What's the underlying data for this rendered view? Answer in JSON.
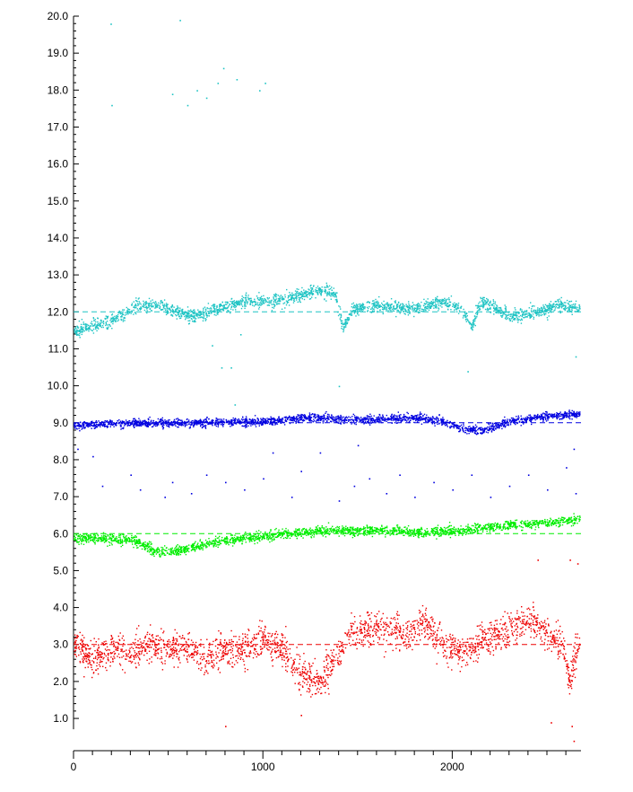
{
  "chart_data": {
    "type": "scatter",
    "title": "",
    "xlabel": "",
    "ylabel": "",
    "xlim": [
      0,
      2680
    ],
    "ylim": [
      0.2,
      20.0
    ],
    "y_ticks": [
      "1.0",
      "2.0",
      "3.0",
      "4.0",
      "5.0",
      "6.0",
      "7.0",
      "8.0",
      "9.0",
      "10.0",
      "11.0",
      "12.0",
      "13.0",
      "14.0",
      "15.0",
      "16.0",
      "17.0",
      "18.0",
      "19.0",
      "20.0"
    ],
    "x_ticks": [
      "0",
      "1000",
      "2000"
    ],
    "x_tick_values": [
      0,
      1000,
      2000
    ],
    "x_minor_step": 100,
    "y_minor_step": 0.2,
    "grid": false,
    "legend": "none",
    "series": [
      {
        "color": "#1fc4c4",
        "reference": 12.0,
        "trend": [
          [
            0,
            11.5
          ],
          [
            150,
            11.7
          ],
          [
            250,
            11.9
          ],
          [
            330,
            12.2
          ],
          [
            450,
            12.2
          ],
          [
            550,
            12.0
          ],
          [
            650,
            11.9
          ],
          [
            750,
            12.1
          ],
          [
            900,
            12.3
          ],
          [
            1050,
            12.3
          ],
          [
            1150,
            12.4
          ],
          [
            1280,
            12.6
          ],
          [
            1380,
            12.5
          ],
          [
            1420,
            11.6
          ],
          [
            1480,
            12.1
          ],
          [
            1600,
            12.2
          ],
          [
            1800,
            12.1
          ],
          [
            1950,
            12.3
          ],
          [
            2050,
            12.1
          ],
          [
            2100,
            11.6
          ],
          [
            2150,
            12.3
          ],
          [
            2300,
            11.9
          ],
          [
            2450,
            12.0
          ],
          [
            2550,
            12.2
          ],
          [
            2680,
            12.1
          ]
        ],
        "spread": 0.17,
        "outliers": [
          [
            195,
            19.8
          ],
          [
            200,
            17.6
          ],
          [
            560,
            19.9
          ],
          [
            520,
            17.9
          ],
          [
            600,
            17.6
          ],
          [
            650,
            18.0
          ],
          [
            700,
            17.8
          ],
          [
            760,
            18.2
          ],
          [
            790,
            18.6
          ],
          [
            860,
            18.3
          ],
          [
            980,
            18.0
          ],
          [
            1010,
            18.2
          ],
          [
            730,
            11.1
          ],
          [
            780,
            10.5
          ],
          [
            830,
            10.5
          ],
          [
            880,
            11.4
          ],
          [
            1400,
            10.0
          ],
          [
            2080,
            10.4
          ],
          [
            2650,
            10.8
          ],
          [
            850,
            9.5
          ]
        ]
      },
      {
        "color": "#0000e0",
        "reference": 9.0,
        "trend": [
          [
            0,
            8.95
          ],
          [
            300,
            9.0
          ],
          [
            500,
            9.0
          ],
          [
            1000,
            9.05
          ],
          [
            1200,
            9.15
          ],
          [
            1500,
            9.1
          ],
          [
            1800,
            9.15
          ],
          [
            1950,
            9.05
          ],
          [
            2050,
            8.85
          ],
          [
            2150,
            8.8
          ],
          [
            2300,
            9.05
          ],
          [
            2500,
            9.2
          ],
          [
            2680,
            9.25
          ]
        ],
        "spread": 0.11,
        "outliers": [
          [
            20,
            8.3
          ],
          [
            100,
            8.1
          ],
          [
            150,
            7.3
          ],
          [
            300,
            7.6
          ],
          [
            350,
            7.2
          ],
          [
            480,
            7.0
          ],
          [
            520,
            7.4
          ],
          [
            620,
            7.1
          ],
          [
            700,
            7.6
          ],
          [
            800,
            7.4
          ],
          [
            900,
            7.2
          ],
          [
            1000,
            7.5
          ],
          [
            1150,
            7.0
          ],
          [
            1200,
            7.7
          ],
          [
            1300,
            8.2
          ],
          [
            1400,
            6.9
          ],
          [
            1480,
            7.3
          ],
          [
            1560,
            7.5
          ],
          [
            1650,
            7.1
          ],
          [
            1720,
            7.6
          ],
          [
            1800,
            7.0
          ],
          [
            1900,
            7.4
          ],
          [
            2000,
            7.2
          ],
          [
            2100,
            7.6
          ],
          [
            2200,
            7.0
          ],
          [
            2300,
            7.3
          ],
          [
            2400,
            7.6
          ],
          [
            2500,
            7.2
          ],
          [
            2600,
            7.8
          ],
          [
            2640,
            8.3
          ],
          [
            2650,
            7.1
          ],
          [
            1500,
            8.4
          ],
          [
            1050,
            8.2
          ]
        ]
      },
      {
        "color": "#00ee00",
        "reference": 6.0,
        "trend": [
          [
            0,
            5.9
          ],
          [
            300,
            5.85
          ],
          [
            450,
            5.5
          ],
          [
            550,
            5.55
          ],
          [
            750,
            5.8
          ],
          [
            1000,
            5.95
          ],
          [
            1300,
            6.1
          ],
          [
            1600,
            6.1
          ],
          [
            1850,
            6.05
          ],
          [
            2050,
            6.1
          ],
          [
            2300,
            6.25
          ],
          [
            2500,
            6.3
          ],
          [
            2680,
            6.4
          ]
        ],
        "spread": 0.13,
        "outliers": []
      },
      {
        "color": "#ee0000",
        "reference": 3.0,
        "trend": [
          [
            0,
            3.0
          ],
          [
            100,
            2.6
          ],
          [
            200,
            2.9
          ],
          [
            300,
            2.8
          ],
          [
            400,
            3.0
          ],
          [
            500,
            2.9
          ],
          [
            600,
            3.0
          ],
          [
            700,
            2.6
          ],
          [
            800,
            2.9
          ],
          [
            900,
            2.9
          ],
          [
            1000,
            3.2
          ],
          [
            1100,
            2.9
          ],
          [
            1200,
            2.2
          ],
          [
            1300,
            2.0
          ],
          [
            1400,
            2.8
          ],
          [
            1460,
            3.3
          ],
          [
            1600,
            3.5
          ],
          [
            1750,
            3.3
          ],
          [
            1850,
            3.6
          ],
          [
            1950,
            3.0
          ],
          [
            2050,
            2.8
          ],
          [
            2150,
            3.1
          ],
          [
            2250,
            3.3
          ],
          [
            2400,
            3.7
          ],
          [
            2500,
            3.3
          ],
          [
            2580,
            3.0
          ],
          [
            2620,
            2.0
          ],
          [
            2660,
            3.0
          ],
          [
            2680,
            3.0
          ]
        ],
        "spread": 0.45,
        "outliers": [
          [
            2630,
            0.8
          ],
          [
            2640,
            0.4
          ],
          [
            2520,
            0.9
          ],
          [
            2620,
            5.3
          ],
          [
            2450,
            5.3
          ],
          [
            800,
            0.8
          ],
          [
            1200,
            1.1
          ],
          [
            2660,
            5.2
          ]
        ]
      }
    ]
  }
}
